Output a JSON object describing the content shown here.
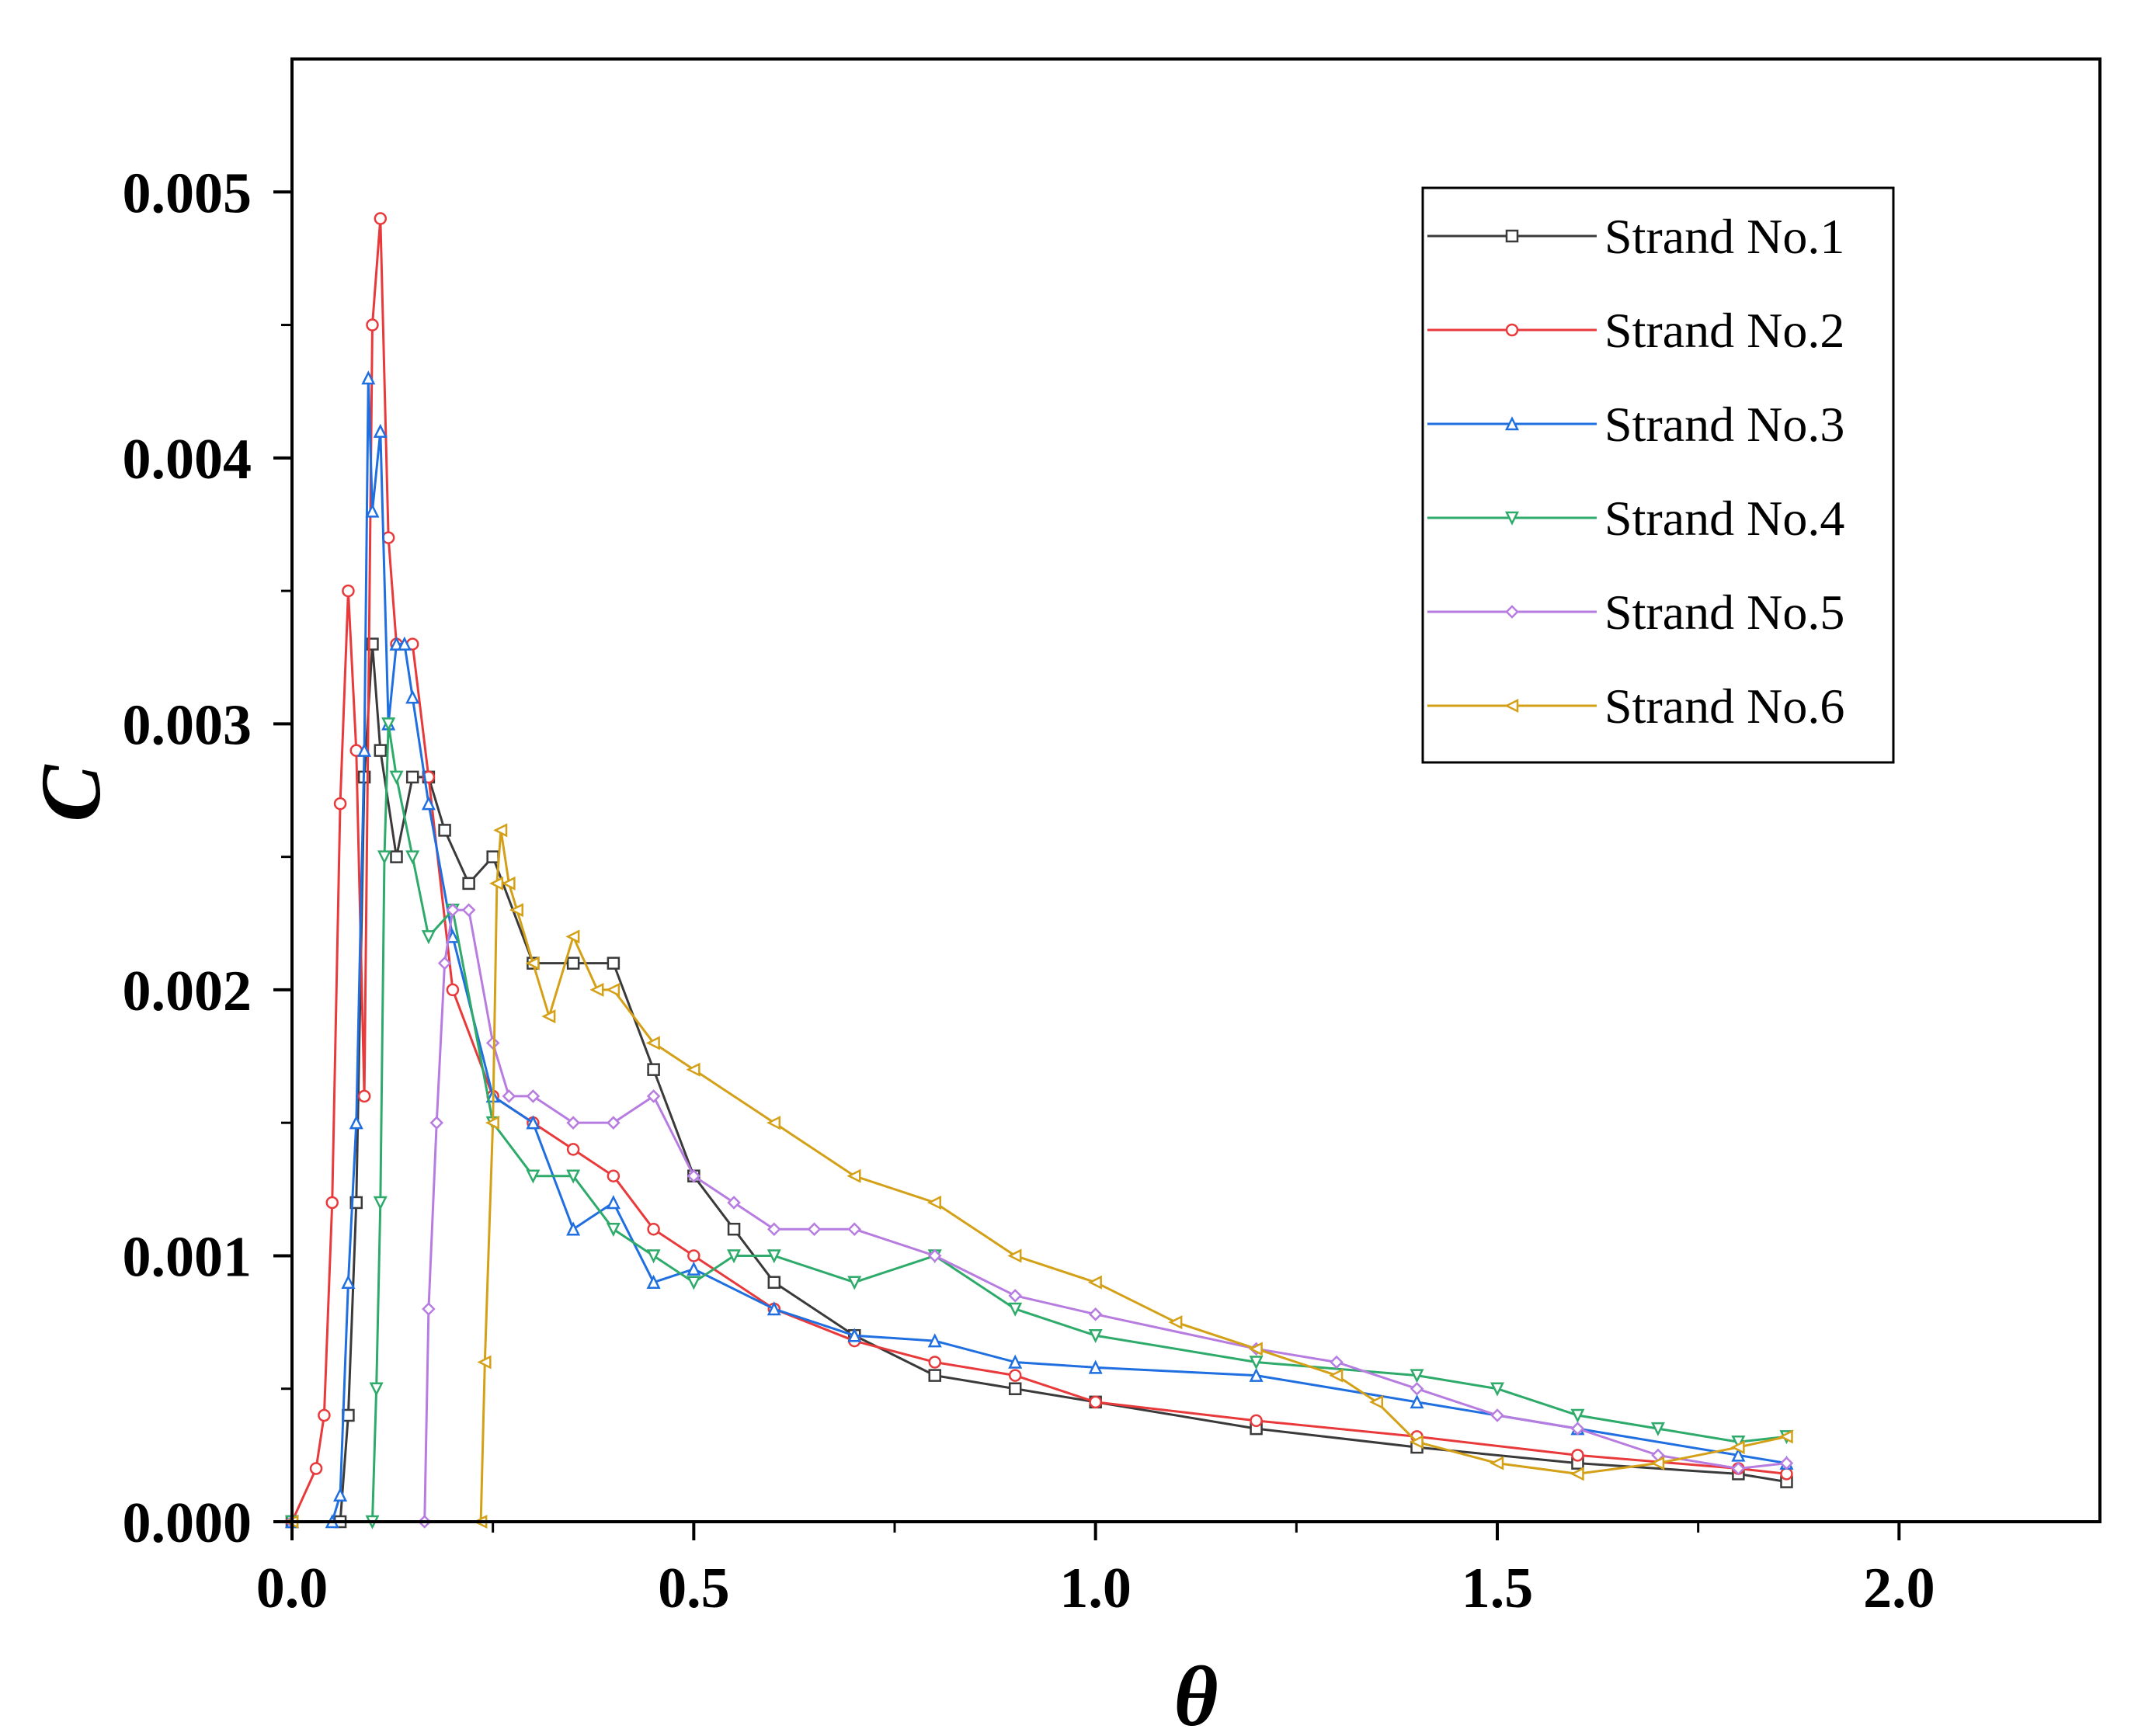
{
  "chart_data": {
    "type": "line",
    "title": "",
    "xlabel": "θ",
    "ylabel": "C",
    "xlim": [
      0,
      2.25
    ],
    "ylim": [
      0,
      0.0055
    ],
    "x_ticks": [
      0.0,
      0.5,
      1.0,
      1.5,
      2.0
    ],
    "x_tick_labels": [
      "0.0",
      "0.5",
      "1.0",
      "1.5",
      "2.0"
    ],
    "y_ticks": [
      0.0,
      0.001,
      0.002,
      0.003,
      0.004,
      0.005
    ],
    "y_tick_labels": [
      "0.000",
      "0.001",
      "0.002",
      "0.003",
      "0.004",
      "0.005"
    ],
    "grid": false,
    "legend_position": "top-right",
    "series": [
      {
        "name": "Strand No.1",
        "color": "#3a3a3a",
        "marker": "square",
        "x": [
          0.0,
          0.06,
          0.07,
          0.08,
          0.09,
          0.1,
          0.11,
          0.13,
          0.15,
          0.17,
          0.19,
          0.22,
          0.25,
          0.3,
          0.35,
          0.4,
          0.45,
          0.5,
          0.55,
          0.6,
          0.7,
          0.8,
          0.9,
          1.0,
          1.2,
          1.4,
          1.6,
          1.8,
          1.86
        ],
        "y": [
          0.0,
          0.0,
          0.0004,
          0.0012,
          0.0028,
          0.0033,
          0.0029,
          0.0025,
          0.0028,
          0.0028,
          0.0026,
          0.0024,
          0.0025,
          0.0021,
          0.0021,
          0.0021,
          0.0017,
          0.0013,
          0.0011,
          0.0009,
          0.0007,
          0.00055,
          0.0005,
          0.00045,
          0.00035,
          0.00028,
          0.00022,
          0.00018,
          0.00015
        ]
      },
      {
        "name": "Strand No.2",
        "color": "#e8393b",
        "marker": "circle",
        "x": [
          0.0,
          0.03,
          0.04,
          0.05,
          0.06,
          0.07,
          0.08,
          0.09,
          0.1,
          0.11,
          0.12,
          0.13,
          0.15,
          0.17,
          0.2,
          0.25,
          0.3,
          0.35,
          0.4,
          0.45,
          0.5,
          0.6,
          0.7,
          0.8,
          0.9,
          1.0,
          1.2,
          1.4,
          1.6,
          1.8,
          1.86
        ],
        "y": [
          0.0,
          0.0002,
          0.0004,
          0.0012,
          0.0027,
          0.0035,
          0.0029,
          0.0016,
          0.0045,
          0.0049,
          0.0037,
          0.0033,
          0.0033,
          0.0028,
          0.002,
          0.0016,
          0.0015,
          0.0014,
          0.0013,
          0.0011,
          0.001,
          0.0008,
          0.00068,
          0.0006,
          0.00055,
          0.00045,
          0.00038,
          0.00032,
          0.00025,
          0.0002,
          0.00018
        ]
      },
      {
        "name": "Strand No.3",
        "color": "#1f6fe0",
        "marker": "triangle-up",
        "x": [
          0.0,
          0.05,
          0.06,
          0.07,
          0.08,
          0.09,
          0.095,
          0.1,
          0.11,
          0.12,
          0.13,
          0.14,
          0.15,
          0.17,
          0.2,
          0.25,
          0.3,
          0.35,
          0.4,
          0.45,
          0.5,
          0.6,
          0.7,
          0.8,
          0.9,
          1.0,
          1.2,
          1.4,
          1.6,
          1.8,
          1.86
        ],
        "y": [
          0.0,
          0.0,
          0.0001,
          0.0009,
          0.0015,
          0.0029,
          0.0043,
          0.0038,
          0.0041,
          0.003,
          0.0033,
          0.0033,
          0.0031,
          0.0027,
          0.0022,
          0.0016,
          0.0015,
          0.0011,
          0.0012,
          0.0009,
          0.00095,
          0.0008,
          0.0007,
          0.00068,
          0.0006,
          0.00058,
          0.00055,
          0.00045,
          0.00035,
          0.00025,
          0.00022
        ]
      },
      {
        "name": "Strand No.4",
        "color": "#2eaa6a",
        "marker": "triangle-down",
        "x": [
          0.0,
          0.1,
          0.105,
          0.11,
          0.115,
          0.12,
          0.13,
          0.15,
          0.17,
          0.2,
          0.25,
          0.3,
          0.35,
          0.4,
          0.45,
          0.5,
          0.55,
          0.6,
          0.7,
          0.8,
          0.9,
          1.0,
          1.2,
          1.4,
          1.5,
          1.6,
          1.7,
          1.8,
          1.86
        ],
        "y": [
          0.0,
          0.0,
          0.0005,
          0.0012,
          0.0025,
          0.003,
          0.0028,
          0.0025,
          0.0022,
          0.0023,
          0.0015,
          0.0013,
          0.0013,
          0.0011,
          0.001,
          0.0009,
          0.001,
          0.001,
          0.0009,
          0.001,
          0.0008,
          0.0007,
          0.0006,
          0.00055,
          0.0005,
          0.0004,
          0.00035,
          0.0003,
          0.00032
        ]
      },
      {
        "name": "Strand No.5",
        "color": "#b77ce0",
        "marker": "diamond",
        "x": [
          0.0,
          0.165,
          0.17,
          0.18,
          0.19,
          0.2,
          0.22,
          0.25,
          0.27,
          0.3,
          0.35,
          0.4,
          0.45,
          0.5,
          0.55,
          0.6,
          0.65,
          0.7,
          0.8,
          0.9,
          1.0,
          1.2,
          1.3,
          1.4,
          1.5,
          1.6,
          1.7,
          1.8,
          1.86
        ],
        "y": [
          0.0,
          0.0,
          0.0008,
          0.0015,
          0.0021,
          0.0023,
          0.0023,
          0.0018,
          0.0016,
          0.0016,
          0.0015,
          0.0015,
          0.0016,
          0.0013,
          0.0012,
          0.0011,
          0.0011,
          0.0011,
          0.001,
          0.00085,
          0.00078,
          0.00065,
          0.0006,
          0.0005,
          0.0004,
          0.00035,
          0.00025,
          0.0002,
          0.00022
        ]
      },
      {
        "name": "Strand No.6",
        "color": "#d4a017",
        "marker": "triangle-left",
        "x": [
          0.0,
          0.235,
          0.24,
          0.25,
          0.255,
          0.26,
          0.27,
          0.28,
          0.3,
          0.32,
          0.35,
          0.38,
          0.4,
          0.45,
          0.5,
          0.6,
          0.7,
          0.8,
          0.9,
          1.0,
          1.1,
          1.2,
          1.3,
          1.35,
          1.4,
          1.5,
          1.6,
          1.7,
          1.8,
          1.86
        ],
        "y": [
          0.0,
          0.0,
          0.0006,
          0.0015,
          0.0024,
          0.0026,
          0.0024,
          0.0023,
          0.0021,
          0.0019,
          0.0022,
          0.002,
          0.002,
          0.0018,
          0.0017,
          0.0015,
          0.0013,
          0.0012,
          0.001,
          0.0009,
          0.00075,
          0.00065,
          0.00055,
          0.00045,
          0.0003,
          0.00022,
          0.00018,
          0.00022,
          0.00028,
          0.00032
        ]
      }
    ]
  }
}
